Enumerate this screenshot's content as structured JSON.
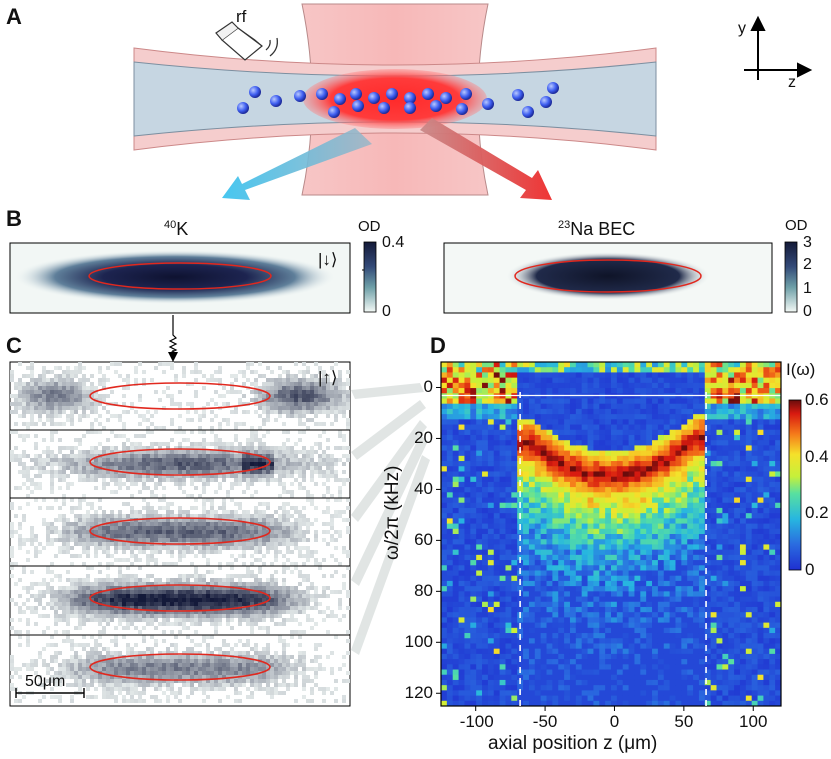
{
  "panels": {
    "a": "A",
    "b": "B",
    "c": "C",
    "d": "D"
  },
  "panel_a": {
    "rf_label": "rf",
    "axis_y": "y",
    "axis_z": "z"
  },
  "panel_b": {
    "k_label_sup": "40",
    "k_label": "K",
    "na_label_sup": "23",
    "na_label": "Na BEC",
    "od_label_left": "OD",
    "od_label_right": "OD",
    "left_colorbar_ticks": [
      "0.4",
      "0"
    ],
    "right_colorbar_ticks": [
      "3",
      "2",
      "1",
      "0"
    ],
    "spin_down": "|↓⟩"
  },
  "panel_c": {
    "spin_up": "|↑⟩",
    "scale_bar": "50μm",
    "strip_fill_levels": [
      0.1,
      0.3,
      0.55,
      0.85,
      0.45
    ]
  },
  "colors": {
    "ellipse": "#e1281e",
    "cloud_dark": "#141a3a",
    "heatmap_bg": "#2a44d8"
  },
  "chart_data": {
    "type": "heatmap",
    "title": "",
    "xlabel": "axial position z (μm)",
    "ylabel": "ω/2π (kHz)",
    "colorbar_label": "I(ω)",
    "x_ticks": [
      "-100",
      "-50",
      "0",
      "50",
      "100"
    ],
    "x_tick_values": [
      -100,
      -50,
      0,
      50,
      100
    ],
    "y_ticks": [
      "0",
      "20",
      "40",
      "60",
      "80",
      "100",
      "120"
    ],
    "y_tick_values": [
      0,
      20,
      40,
      60,
      80,
      100,
      120
    ],
    "colorbar_ticks": [
      "0.6",
      "0.4",
      "0.2",
      "0"
    ],
    "colorbar_values": [
      0.6,
      0.4,
      0.2,
      0
    ],
    "xlim": [
      -125,
      120
    ],
    "ylim": [
      125,
      -10
    ],
    "dashed_lines_z": [
      -68,
      66
    ],
    "edge_line_freq_khz": 0,
    "peak_profile": {
      "description_points_z": [
        -60,
        -40,
        -20,
        0,
        20,
        40,
        60
      ],
      "peak_freq_khz": [
        22,
        30,
        34,
        35,
        33,
        28,
        20
      ],
      "peak_intensity": [
        0.5,
        0.55,
        0.5,
        0.45,
        0.5,
        0.55,
        0.5
      ]
    }
  }
}
